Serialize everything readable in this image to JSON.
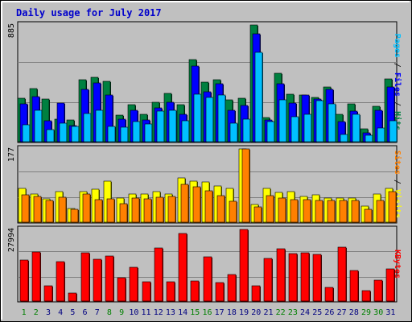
{
  "chart_data": {
    "type": "bar",
    "title": "Daily usage for July 2017",
    "days": [
      "1",
      "2",
      "3",
      "4",
      "5",
      "6",
      "7",
      "8",
      "9",
      "10",
      "11",
      "12",
      "13",
      "14",
      "15",
      "16",
      "17",
      "18",
      "19",
      "20",
      "21",
      "22",
      "23",
      "24",
      "25",
      "26",
      "27",
      "28",
      "29",
      "30",
      "31"
    ],
    "weekend_days": [
      "1",
      "2",
      "8",
      "9",
      "15",
      "16",
      "22",
      "23",
      "29",
      "30"
    ],
    "colors": {
      "title": "#0000cc",
      "weekday_label": "#000080",
      "weekend_label": "#008000",
      "hits": "#008040",
      "files": "#0000ff",
      "pages": "#00c0ff",
      "visits": "#ffff00",
      "sites": "#ff8000",
      "kbytes": "#ff0000"
    },
    "panels": [
      {
        "id": "hits",
        "ymax_label": "885",
        "ylim": [
          0,
          885
        ],
        "right_label": {
          "sep": " / ",
          "parts": [
            {
              "text": "Pages",
              "color": "#00c0ff"
            },
            {
              "text": "Files",
              "color": "#0000ff"
            },
            {
              "text": "Hits",
              "color": "#008040"
            }
          ]
        },
        "series": [
          {
            "name": "Hits",
            "color": "#008040",
            "values": [
              335,
              405,
              330,
              175,
              170,
              470,
              490,
              460,
              205,
              285,
              210,
              305,
              370,
              285,
              625,
              455,
              470,
              320,
              335,
              885,
              185,
              520,
              365,
              355,
              340,
              420,
              210,
              290,
              105,
              270,
              480
            ]
          },
          {
            "name": "Files",
            "color": "#0000ff",
            "values": [
              290,
              345,
              165,
              300,
              125,
              400,
              450,
              355,
              175,
              245,
              170,
              260,
              305,
              210,
              575,
              380,
              440,
              240,
              280,
              820,
              170,
              445,
              295,
              355,
              325,
              400,
              160,
              235,
              75,
              245,
              420
            ]
          },
          {
            "name": "Pages",
            "color": "#00c0ff",
            "values": [
              135,
              245,
              100,
              145,
              120,
              220,
              245,
              120,
              115,
              155,
              140,
              235,
              245,
              165,
              365,
              340,
              360,
              145,
              175,
              680,
              160,
              320,
              195,
              210,
              315,
              290,
              60,
              215,
              55,
              110,
              165
            ]
          }
        ]
      },
      {
        "id": "visits",
        "ymax_label": "177",
        "ylim": [
          0,
          177
        ],
        "right_label": {
          "sep": " / ",
          "parts": [
            {
              "text": "Sites",
              "color": "#ff8000"
            },
            {
              "text": "Visits",
              "color": "#ffff00"
            }
          ]
        },
        "series": [
          {
            "name": "Visits",
            "color": "#ffff00",
            "values": [
              82,
              70,
              57,
              75,
              35,
              75,
              81,
              100,
              60,
              70,
              70,
              75,
              70,
              108,
              100,
              98,
              88,
              82,
              177,
              45,
              83,
              73,
              75,
              63,
              68,
              60,
              60,
              60,
              40,
              69,
              83
            ]
          },
          {
            "name": "Sites",
            "color": "#ff8000",
            "values": [
              68,
              64,
              53,
              62,
              32,
              69,
              55,
              57,
              47,
              60,
              58,
              62,
              63,
              93,
              87,
              77,
              66,
              52,
              177,
              38,
              66,
              59,
              56,
              55,
              54,
              54,
              53,
              53,
              33,
              53,
              75
            ]
          }
        ]
      },
      {
        "id": "kbytes",
        "ymax_label": "27994",
        "ylim": [
          0,
          27994
        ],
        "right_label": {
          "sep": " / ",
          "parts": [
            {
              "text": "KBytes",
              "color": "#ff0000"
            }
          ]
        },
        "series": [
          {
            "name": "KBytes",
            "color": "#ff0000",
            "values": [
              16200,
              19200,
              6300,
              15700,
              3500,
              19100,
              16600,
              17600,
              9200,
              13500,
              7800,
              20900,
              7800,
              26500,
              8200,
              17500,
              7500,
              10500,
              28000,
              6300,
              16800,
              20400,
              18800,
              19000,
              18500,
              5500,
              21000,
              12200,
              4500,
              8500,
              12700
            ]
          }
        ]
      }
    ]
  }
}
